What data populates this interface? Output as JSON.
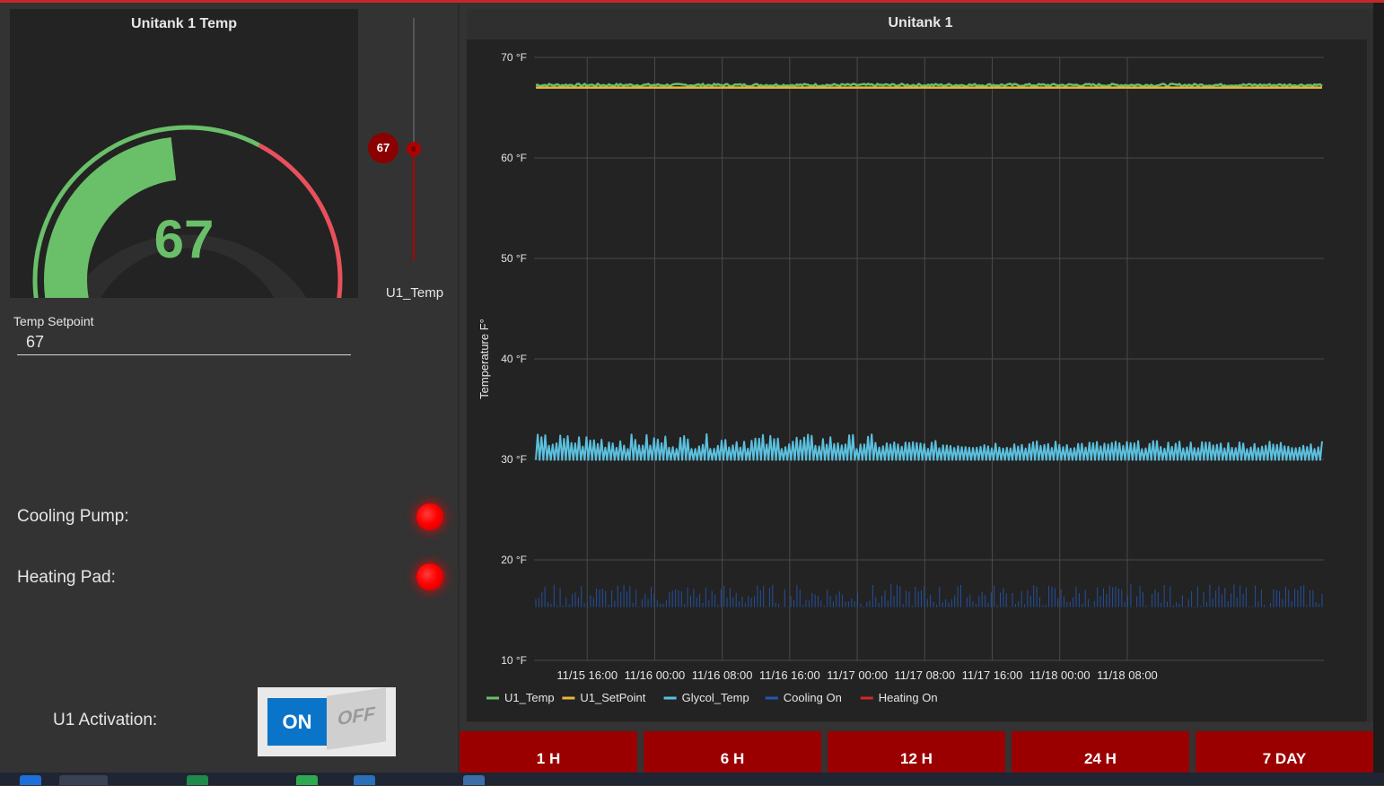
{
  "gauge": {
    "title": "Unitank 1 Temp",
    "value": "67",
    "fraction": 0.47,
    "color_fill": "#6abf69",
    "color_warn": "#e8505b"
  },
  "slider": {
    "value": "67",
    "label": "U1_Temp",
    "fraction": 0.46
  },
  "setpoint": {
    "label": "Temp Setpoint",
    "value": "67"
  },
  "indicators": [
    {
      "label": "Cooling Pump:",
      "state": "red"
    },
    {
      "label": "Heating Pad:",
      "state": "red"
    }
  ],
  "activation": {
    "label": "U1 Activation:",
    "on_label": "ON",
    "off_label": "OFF",
    "state": "on"
  },
  "chart_data": {
    "type": "line",
    "title": "Unitank 1",
    "ylabel": "Temperature F°",
    "ylim": [
      10,
      70
    ],
    "yticks": [
      "70 °F",
      "60 °F",
      "50 °F",
      "40 °F",
      "30 °F",
      "20 °F",
      "10 °F"
    ],
    "xticks": [
      "11/15 16:00",
      "11/16 00:00",
      "11/16 08:00",
      "11/16 16:00",
      "11/17 00:00",
      "11/17 08:00",
      "11/17 16:00",
      "11/18 00:00",
      "11/18 08:00"
    ],
    "xlim_hours": [
      -6.3,
      87.3
    ],
    "grid": true,
    "legend_position": "bottom-left",
    "series": [
      {
        "name": "U1_Temp",
        "color": "#6abf69",
        "values": [
          67.2,
          67.3,
          67.2,
          67.3,
          67.2,
          67.3,
          67.2,
          67.3,
          67.2,
          67.3,
          67.2,
          67.3
        ]
      },
      {
        "name": "U1_SetPoint",
        "color": "#e6b63d",
        "values": [
          67.0,
          67.0,
          67.0,
          67.0,
          67.0,
          67.0,
          67.0,
          67.0,
          67.0,
          67.0,
          67.0,
          67.0
        ]
      },
      {
        "name": "Glycol_Temp",
        "color": "#5bc0de",
        "values": [
          29.5,
          31.5,
          29.6,
          32.0,
          29.7,
          31.2,
          29.8,
          32.2,
          29.5,
          31.0,
          29.7,
          31.8
        ]
      },
      {
        "name": "Cooling On",
        "color": "#2457b4",
        "values": [
          15.3,
          16.8,
          15.3,
          17.0,
          15.3,
          16.5,
          15.3,
          17.2,
          15.3,
          16.6,
          15.3,
          16.9
        ]
      },
      {
        "name": "Heating On",
        "color": "#d62728",
        "values": []
      }
    ]
  },
  "range_buttons": [
    "1 H",
    "6 H",
    "12 H",
    "24 H",
    "7 DAY"
  ]
}
